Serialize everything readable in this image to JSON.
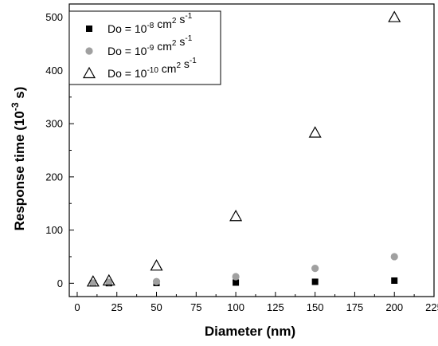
{
  "chart_data": {
    "type": "scatter",
    "xlabel": "Diameter (nm)",
    "ylabel": {
      "prefix": "Response time (10",
      "exponent": "-3",
      "suffix": " s)"
    },
    "xlim": [
      -5,
      225
    ],
    "ylim": [
      -25,
      525
    ],
    "x_ticks": [
      0,
      25,
      50,
      75,
      100,
      125,
      150,
      175,
      200,
      225
    ],
    "y_ticks": [
      0,
      100,
      200,
      300,
      400,
      500
    ],
    "grid": false,
    "legend_position": "top-left",
    "series": [
      {
        "name": "Do = 10-8 cm2 s-1",
        "label_parts": {
          "prefix": "Do = 10",
          "exponent": "-8",
          "unit": " cm",
          "unit_exp": "2",
          "tail": " s",
          "tail_exp": "-1"
        },
        "marker": "square",
        "color": "#000000",
        "x": [
          10,
          20,
          50,
          100,
          150,
          200
        ],
        "y": [
          0.05,
          0.2,
          0.5,
          1.3,
          2.8,
          5.0
        ]
      },
      {
        "name": "Do = 10-9 cm2 s-1",
        "label_parts": {
          "prefix": "Do = 10",
          "exponent": "-9",
          "unit": " cm",
          "unit_exp": "2",
          "tail": " s",
          "tail_exp": "-1"
        },
        "marker": "circle",
        "color": "#a0a0a0",
        "x": [
          10,
          20,
          50,
          100,
          150,
          200
        ],
        "y": [
          0.5,
          2.0,
          3.2,
          12.5,
          28.0,
          50.0
        ]
      },
      {
        "name": "Do = 10-10 cm2 s-1",
        "label_parts": {
          "prefix": "Do = 10",
          "exponent": "-10",
          "unit": " cm",
          "unit_exp": "2",
          "tail": " s",
          "tail_exp": "-1"
        },
        "marker": "triangle-open",
        "color": "#000000",
        "x": [
          10,
          20,
          50,
          100,
          150,
          200
        ],
        "y": [
          3.0,
          5.0,
          33.0,
          126.0,
          283.0,
          500.0
        ]
      }
    ]
  }
}
